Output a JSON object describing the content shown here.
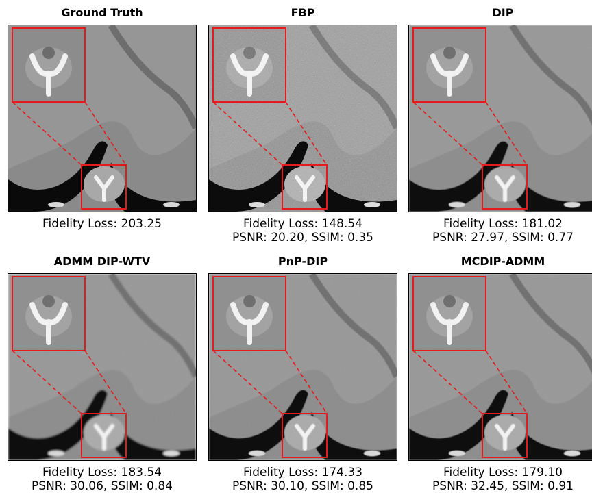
{
  "panels": [
    {
      "title": "Ground Truth",
      "fidelity": "Fidelity Loss: 203.25",
      "psnr_ssim": "",
      "noise": 0,
      "blur": 0
    },
    {
      "title": "FBP",
      "fidelity": "Fidelity Loss: 148.54",
      "psnr_ssim": "PSNR: 20.20, SSIM: 0.35",
      "noise": 3,
      "blur": 0
    },
    {
      "title": "DIP",
      "fidelity": "Fidelity Loss: 181.02",
      "psnr_ssim": "PSNR: 27.97, SSIM: 0.77",
      "noise": 1,
      "blur": 1
    },
    {
      "title": "ADMM DIP-WTV",
      "fidelity": "Fidelity Loss: 183.54",
      "psnr_ssim": "PSNR: 30.06, SSIM: 0.84",
      "noise": 1,
      "blur": 2
    },
    {
      "title": "PnP-DIP",
      "fidelity": "Fidelity Loss: 174.33",
      "psnr_ssim": "PSNR: 30.10, SSIM: 0.85",
      "noise": 1,
      "blur": 1
    },
    {
      "title": "MCDIP-ADMM",
      "fidelity": "Fidelity Loss: 179.10",
      "psnr_ssim": "PSNR: 32.45, SSIM: 0.91",
      "noise": 1,
      "blur": 1
    }
  ],
  "colors": {
    "zoom_box": "#e41a1c",
    "tissue": "#8a8a8a",
    "air": "#0a0a0a",
    "bone": "#f2f2f2"
  }
}
